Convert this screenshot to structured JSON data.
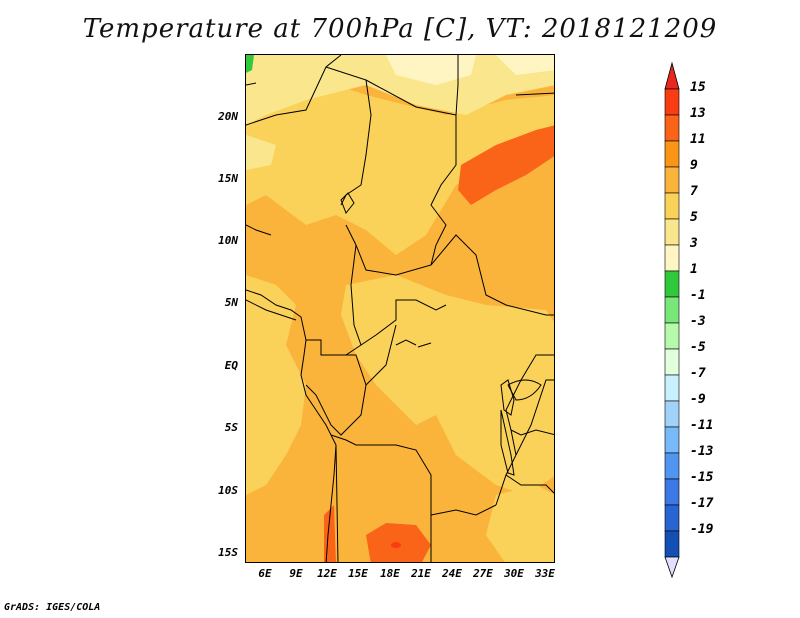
{
  "title": "Temperature at 700hPa [C], VT: 2018121209",
  "credit": "GrADS: IGES/COLA",
  "lat_labels": [
    "20N",
    "15N",
    "10N",
    "5N",
    "EQ",
    "5S",
    "10S",
    "15S"
  ],
  "lon_labels": [
    "6E",
    "9E",
    "12E",
    "15E",
    "18E",
    "21E",
    "24E",
    "27E",
    "30E",
    "33E"
  ],
  "colorbar": {
    "labels": [
      "15",
      "13",
      "11",
      "9",
      "7",
      "5",
      "3",
      "1",
      "-1",
      "-3",
      "-5",
      "-7",
      "-9",
      "-11",
      "-13",
      "-15",
      "-17",
      "-19"
    ],
    "colors": [
      "#e8281e",
      "#fa3c12",
      "#fa6418",
      "#fa9614",
      "#fab43c",
      "#fad25a",
      "#fae68c",
      "#fff5c3",
      "#32c83c",
      "#78e678",
      "#b4faaa",
      "#e1ffdc",
      "#c8f0ff",
      "#a0d2fa",
      "#78b9fa",
      "#5096f0",
      "#3c78e6",
      "#2864d2",
      "#1450b4",
      "#0a1e78"
    ],
    "top_arrow_color": "#e8281e",
    "bottom_arrow_color": "#e1e1ff"
  },
  "map_colors": {
    "t3_5": "#fff5c3",
    "t5_7": "#fae68c",
    "t7_9": "#fad25a",
    "t9_11": "#fab43c",
    "t11_13": "#fa9614",
    "t13_15": "#fa6418",
    "t15_plus": "#fa3c12",
    "t1_3": "#32c83c"
  }
}
